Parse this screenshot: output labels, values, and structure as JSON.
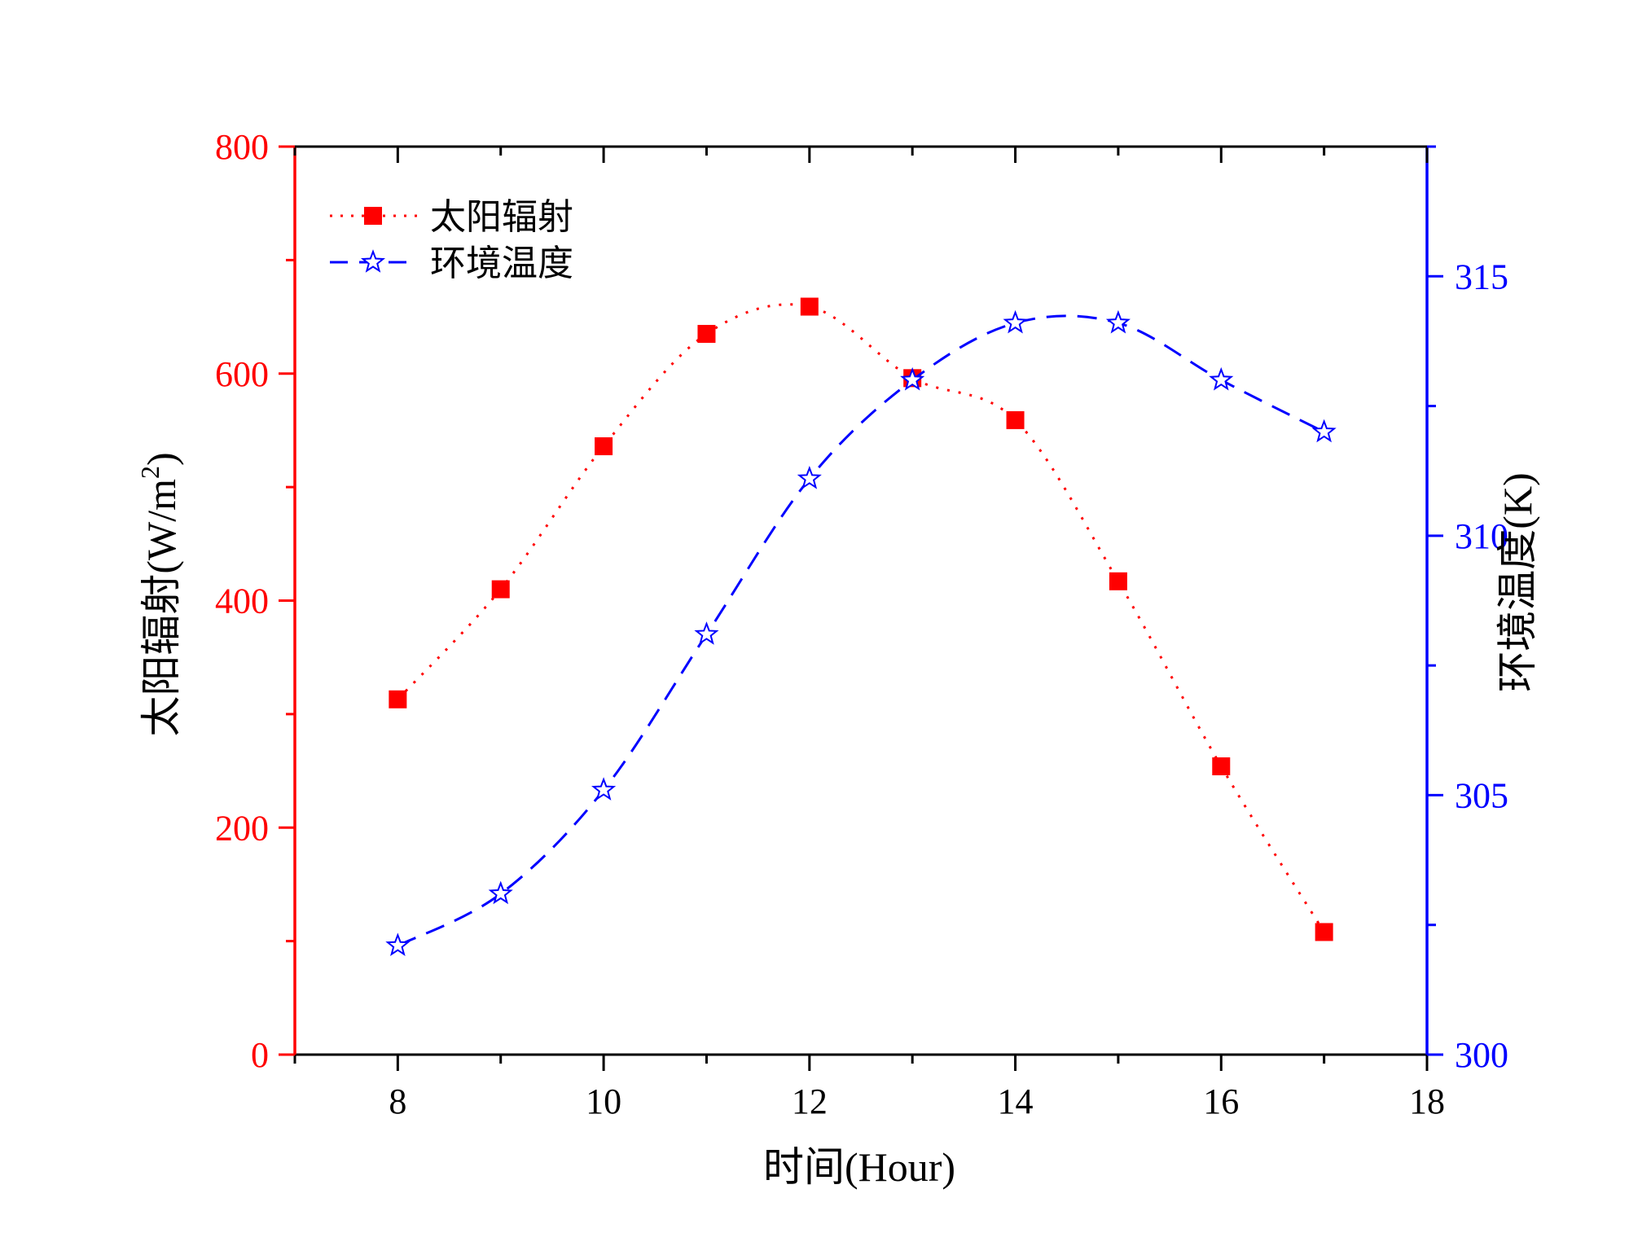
{
  "chart_data": {
    "type": "line",
    "xlabel": "时间(Hour)",
    "ylabel_left": {
      "main": "太阳辐射(W/m",
      "sup": "2",
      "tail": ")"
    },
    "ylabel_right": "环境温度(K)",
    "xlim": [
      7,
      18
    ],
    "xticks": [
      8,
      10,
      12,
      14,
      16,
      18
    ],
    "ylim_left": [
      0,
      800
    ],
    "yticks_left": [
      0,
      200,
      400,
      600,
      800
    ],
    "ylim_right": [
      300,
      317.5
    ],
    "yticks_right": [
      300,
      305,
      310,
      315
    ],
    "legend_position": "top-left",
    "series": [
      {
        "name": "太阳辐射",
        "axis": "left",
        "color": "#ff0000",
        "line_style": "dotted",
        "marker": "square",
        "x": [
          8,
          9,
          10,
          11,
          12,
          13,
          14,
          15,
          16,
          17
        ],
        "values": [
          313,
          410,
          536,
          635,
          659,
          596,
          559,
          417,
          254,
          108
        ]
      },
      {
        "name": "环境温度",
        "axis": "right",
        "color": "#0000ff",
        "line_style": "dashed",
        "marker": "star-open",
        "x": [
          8,
          9,
          10,
          11,
          12,
          13,
          14,
          15,
          16,
          17
        ],
        "values": [
          302.1,
          303.1,
          305.1,
          308.1,
          311.1,
          313.0,
          314.1,
          314.1,
          313.0,
          312.0
        ]
      }
    ]
  }
}
